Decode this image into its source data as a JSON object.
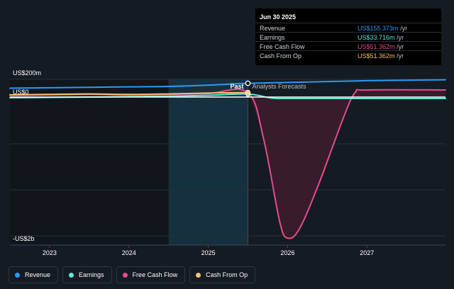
{
  "chart_data": {
    "type": "line",
    "title": "",
    "y_axis_labels": [
      "US$200m",
      "US$0",
      "-US$2b"
    ],
    "x_tick_labels": [
      "2023",
      "2024",
      "2025",
      "2026",
      "2027"
    ],
    "x_ticks": [
      2023,
      2024,
      2025,
      2026,
      2027
    ],
    "x_range": [
      2022.5,
      2027.99
    ],
    "y_range": [
      -2000,
      200
    ],
    "grid": true,
    "region_labels": {
      "past": "Past",
      "forecast": "Analysts Forecasts"
    },
    "divider_x": 2025.5,
    "highlight_range": [
      2024.5,
      2025.5
    ],
    "series": [
      {
        "name": "Revenue",
        "color": "#2b9af3",
        "points": [
          [
            2022.5,
            100
          ],
          [
            2023.0,
            105
          ],
          [
            2023.5,
            110
          ],
          [
            2024.0,
            115
          ],
          [
            2024.5,
            120
          ],
          [
            2025.0,
            135
          ],
          [
            2025.5,
            155.373
          ],
          [
            2026.0,
            165
          ],
          [
            2026.5,
            175
          ],
          [
            2027.0,
            185
          ],
          [
            2027.5,
            190
          ],
          [
            2027.99,
            195
          ]
        ]
      },
      {
        "name": "Earnings",
        "color": "#5ee8e0",
        "points": [
          [
            2022.5,
            -10
          ],
          [
            2023.0,
            -5
          ],
          [
            2023.5,
            0
          ],
          [
            2024.0,
            5
          ],
          [
            2024.5,
            10
          ],
          [
            2025.0,
            20
          ],
          [
            2025.5,
            33.716
          ],
          [
            2025.8,
            -15
          ],
          [
            2026.0,
            -20
          ],
          [
            2026.5,
            -20
          ],
          [
            2027.0,
            -20
          ],
          [
            2027.99,
            -20
          ]
        ]
      },
      {
        "name": "Free Cash Flow",
        "color": "#e64b8c",
        "points": [
          [
            2022.5,
            20
          ],
          [
            2023.0,
            25
          ],
          [
            2023.5,
            30
          ],
          [
            2024.0,
            25
          ],
          [
            2024.5,
            30
          ],
          [
            2025.0,
            40
          ],
          [
            2025.5,
            51.362
          ],
          [
            2025.7,
            -600
          ],
          [
            2025.9,
            -1750
          ],
          [
            2026.0,
            -1980
          ],
          [
            2026.15,
            -1850
          ],
          [
            2026.4,
            -1200
          ],
          [
            2026.7,
            -300
          ],
          [
            2026.85,
            50
          ],
          [
            2027.0,
            80
          ],
          [
            2027.99,
            80
          ]
        ]
      },
      {
        "name": "Cash From Op",
        "color": "#f5c06b",
        "points": [
          [
            2022.5,
            25
          ],
          [
            2023.0,
            30
          ],
          [
            2023.5,
            35
          ],
          [
            2024.0,
            30
          ],
          [
            2024.5,
            35
          ],
          [
            2025.0,
            45
          ],
          [
            2025.5,
            51.362
          ]
        ]
      }
    ]
  },
  "tooltip": {
    "date": "Jun 30 2025",
    "rows": [
      {
        "label": "Revenue",
        "value": "US$155.373m",
        "unit": "/yr",
        "color": "#2b9af3"
      },
      {
        "label": "Earnings",
        "value": "US$33.716m",
        "unit": "/yr",
        "color": "#5ee8e0"
      },
      {
        "label": "Free Cash Flow",
        "value": "US$51.362m",
        "unit": "/yr",
        "color": "#e64b8c"
      },
      {
        "label": "Cash From Op",
        "value": "US$51.362m",
        "unit": "/yr",
        "color": "#f5c06b"
      }
    ]
  },
  "legend": [
    {
      "label": "Revenue",
      "color": "#2b9af3"
    },
    {
      "label": "Earnings",
      "color": "#5ee8e0"
    },
    {
      "label": "Free Cash Flow",
      "color": "#e64b8c"
    },
    {
      "label": "Cash From Op",
      "color": "#f5c06b"
    }
  ]
}
